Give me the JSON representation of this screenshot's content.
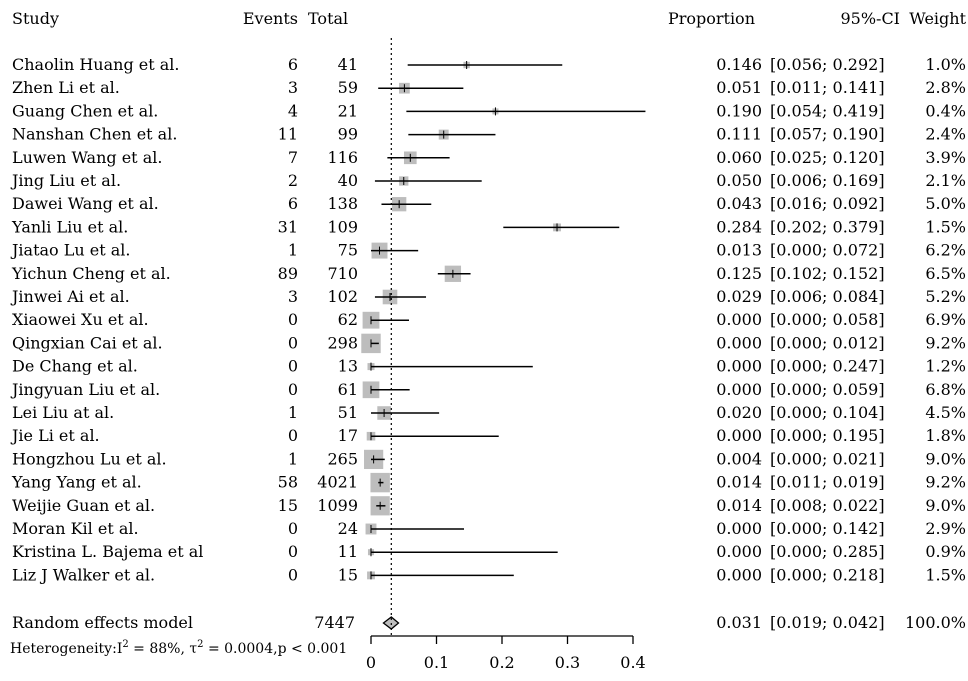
{
  "chart_data": {
    "type": "forest",
    "headers": {
      "study": "Study",
      "events": "Events",
      "total": "Total",
      "proportion": "Proportion",
      "ci": "95%-CI",
      "weight": "Weight"
    },
    "xlim": [
      0,
      0.4
    ],
    "x_ticks": [
      0,
      0.1,
      0.2,
      0.3,
      0.4
    ],
    "x_tick_labels": [
      "0",
      "0.1",
      "0.2",
      "0.3",
      "0.4"
    ],
    "reference_line": 0.031,
    "rows": [
      {
        "study": "Chaolin Huang et al.",
        "events": "6",
        "total": "41",
        "proportion": 0.146,
        "lower": 0.056,
        "upper": 0.292,
        "prop_text": "0.146",
        "ci_text": "[0.056; 0.292]",
        "weight": 1.0,
        "weight_text": "1.0%"
      },
      {
        "study": "Zhen Li et al.",
        "events": "3",
        "total": "59",
        "proportion": 0.051,
        "lower": 0.011,
        "upper": 0.141,
        "prop_text": "0.051",
        "ci_text": "[0.011; 0.141]",
        "weight": 2.8,
        "weight_text": "2.8%"
      },
      {
        "study": "Guang Chen et al.",
        "events": "4",
        "total": "21",
        "proportion": 0.19,
        "lower": 0.054,
        "upper": 0.419,
        "prop_text": "0.190",
        "ci_text": "[0.054; 0.419]",
        "weight": 0.4,
        "weight_text": "0.4%"
      },
      {
        "study": "Nanshan Chen et al.",
        "events": "11",
        "total": "99",
        "proportion": 0.111,
        "lower": 0.057,
        "upper": 0.19,
        "prop_text": "0.111",
        "ci_text": "[0.057; 0.190]",
        "weight": 2.4,
        "weight_text": "2.4%"
      },
      {
        "study": "Luwen Wang et al.",
        "events": "7",
        "total": "116",
        "proportion": 0.06,
        "lower": 0.025,
        "upper": 0.12,
        "prop_text": "0.060",
        "ci_text": "[0.025; 0.120]",
        "weight": 3.9,
        "weight_text": "3.9%"
      },
      {
        "study": "Jing Liu et al.",
        "events": "2",
        "total": "40",
        "proportion": 0.05,
        "lower": 0.006,
        "upper": 0.169,
        "prop_text": "0.050",
        "ci_text": "[0.006; 0.169]",
        "weight": 2.1,
        "weight_text": "2.1%"
      },
      {
        "study": "Dawei Wang et al.",
        "events": "6",
        "total": "138",
        "proportion": 0.043,
        "lower": 0.016,
        "upper": 0.092,
        "prop_text": "0.043",
        "ci_text": "[0.016; 0.092]",
        "weight": 5.0,
        "weight_text": "5.0%"
      },
      {
        "study": "Yanli Liu et al.",
        "events": "31",
        "total": "109",
        "proportion": 0.284,
        "lower": 0.202,
        "upper": 0.379,
        "prop_text": "0.284",
        "ci_text": "[0.202; 0.379]",
        "weight": 1.5,
        "weight_text": "1.5%"
      },
      {
        "study": "Jiatao Lu et al.",
        "events": "1",
        "total": "75",
        "proportion": 0.013,
        "lower": 0.0,
        "upper": 0.072,
        "prop_text": "0.013",
        "ci_text": "[0.000; 0.072]",
        "weight": 6.2,
        "weight_text": "6.2%"
      },
      {
        "study": "Yichun Cheng et al.",
        "events": "89",
        "total": "710",
        "proportion": 0.125,
        "lower": 0.102,
        "upper": 0.152,
        "prop_text": "0.125",
        "ci_text": "[0.102; 0.152]",
        "weight": 6.5,
        "weight_text": "6.5%"
      },
      {
        "study": "Jinwei Ai et al.",
        "events": "3",
        "total": "102",
        "proportion": 0.029,
        "lower": 0.006,
        "upper": 0.084,
        "prop_text": "0.029",
        "ci_text": "[0.006; 0.084]",
        "weight": 5.2,
        "weight_text": "5.2%"
      },
      {
        "study": "Xiaowei Xu et al.",
        "events": "0",
        "total": "62",
        "proportion": 0.0,
        "lower": 0.0,
        "upper": 0.058,
        "prop_text": "0.000",
        "ci_text": "[0.000; 0.058]",
        "weight": 6.9,
        "weight_text": "6.9%"
      },
      {
        "study": "Qingxian Cai et al.",
        "events": "0",
        "total": "298",
        "proportion": 0.0,
        "lower": 0.0,
        "upper": 0.012,
        "prop_text": "0.000",
        "ci_text": "[0.000; 0.012]",
        "weight": 9.2,
        "weight_text": "9.2%"
      },
      {
        "study": "De Chang et al.",
        "events": "0",
        "total": "13",
        "proportion": 0.0,
        "lower": 0.0,
        "upper": 0.247,
        "prop_text": "0.000",
        "ci_text": "[0.000; 0.247]",
        "weight": 1.2,
        "weight_text": "1.2%"
      },
      {
        "study": "Jingyuan Liu et al.",
        "events": "0",
        "total": "61",
        "proportion": 0.0,
        "lower": 0.0,
        "upper": 0.059,
        "prop_text": "0.000",
        "ci_text": "[0.000; 0.059]",
        "weight": 6.8,
        "weight_text": "6.8%"
      },
      {
        "study": "Lei Liu at al.",
        "events": "1",
        "total": "51",
        "proportion": 0.02,
        "lower": 0.0,
        "upper": 0.104,
        "prop_text": "0.020",
        "ci_text": "[0.000; 0.104]",
        "weight": 4.5,
        "weight_text": "4.5%"
      },
      {
        "study": "Jie Li et al.",
        "events": "0",
        "total": "17",
        "proportion": 0.0,
        "lower": 0.0,
        "upper": 0.195,
        "prop_text": "0.000",
        "ci_text": "[0.000; 0.195]",
        "weight": 1.8,
        "weight_text": "1.8%"
      },
      {
        "study": "Hongzhou Lu et al.",
        "events": "1",
        "total": "265",
        "proportion": 0.004,
        "lower": 0.0,
        "upper": 0.021,
        "prop_text": "0.004",
        "ci_text": "[0.000; 0.021]",
        "weight": 9.0,
        "weight_text": "9.0%"
      },
      {
        "study": "Yang Yang et al.",
        "events": "58",
        "total": "4021",
        "proportion": 0.014,
        "lower": 0.011,
        "upper": 0.019,
        "prop_text": "0.014",
        "ci_text": "[0.011; 0.019]",
        "weight": 9.2,
        "weight_text": "9.2%"
      },
      {
        "study": "Weijie Guan et al.",
        "events": "15",
        "total": "1099",
        "proportion": 0.014,
        "lower": 0.008,
        "upper": 0.022,
        "prop_text": "0.014",
        "ci_text": "[0.008; 0.022]",
        "weight": 9.0,
        "weight_text": "9.0%"
      },
      {
        "study": "Moran Kil et al.",
        "events": "0",
        "total": "24",
        "proportion": 0.0,
        "lower": 0.0,
        "upper": 0.142,
        "prop_text": "0.000",
        "ci_text": "[0.000; 0.142]",
        "weight": 2.9,
        "weight_text": "2.9%"
      },
      {
        "study": "Kristina L. Bajema et al",
        "events": "0",
        "total": "11",
        "proportion": 0.0,
        "lower": 0.0,
        "upper": 0.285,
        "prop_text": "0.000",
        "ci_text": "[0.000; 0.285]",
        "weight": 0.9,
        "weight_text": "0.9%"
      },
      {
        "study": "Liz J Walker et al.",
        "events": "0",
        "total": "15",
        "proportion": 0.0,
        "lower": 0.0,
        "upper": 0.218,
        "prop_text": "0.000",
        "ci_text": "[0.000; 0.218]",
        "weight": 1.5,
        "weight_text": "1.5%"
      }
    ],
    "summary": {
      "label": "Random effects model",
      "total": "7447",
      "proportion": 0.031,
      "lower": 0.019,
      "upper": 0.042,
      "prop_text": "0.031",
      "ci_text": "[0.019; 0.042]",
      "weight_text": "100.0%"
    },
    "heterogeneity": {
      "prefix": "Heterogeneity:",
      "i2_symbol": "I",
      "superscript": "2",
      "i2_value": " = 88%, ",
      "tau2_symbol": "τ",
      "tau2_value": " = 0.0004,p < 0.001"
    }
  }
}
